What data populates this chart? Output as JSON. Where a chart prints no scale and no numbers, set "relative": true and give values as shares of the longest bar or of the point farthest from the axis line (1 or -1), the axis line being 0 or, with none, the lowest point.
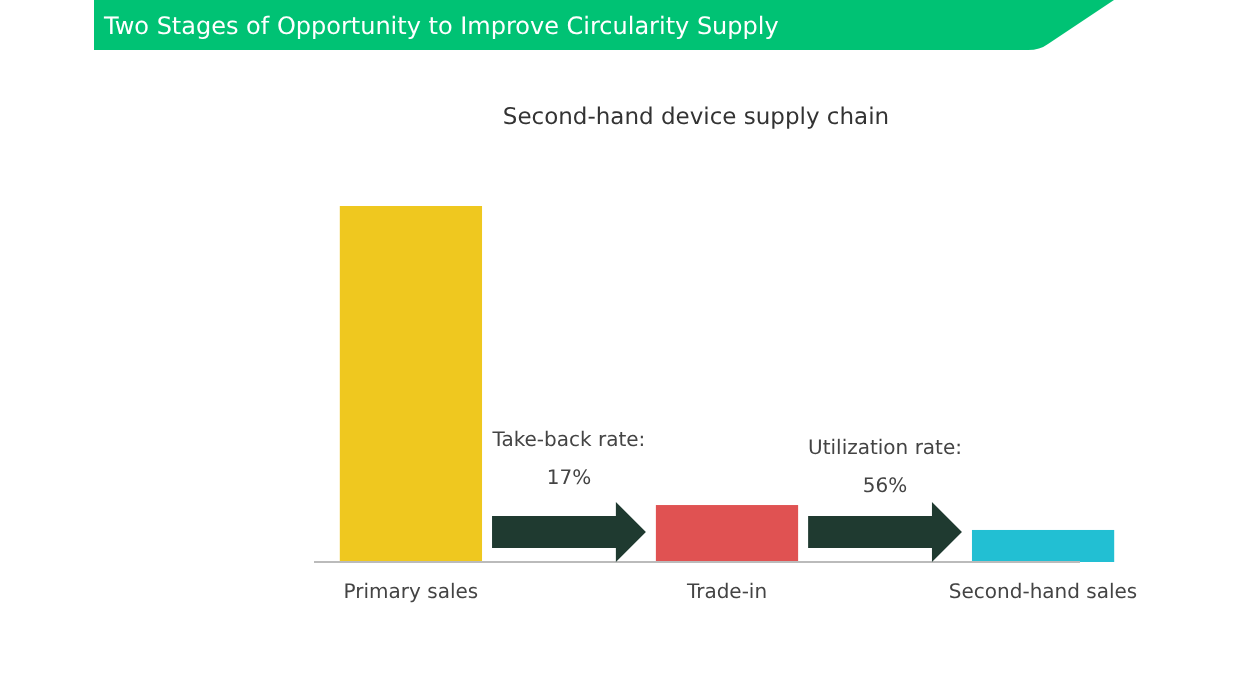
{
  "chart_data": {
    "type": "bar",
    "title": "Two Stages of Opportunity to Improve Circularity Supply",
    "subtitle": "Second-hand device supply chain",
    "categories": [
      "Primary sales",
      "Trade-in",
      "Second-hand sales"
    ],
    "values": [
      1,
      0.16,
      0.09
    ],
    "colors": [
      "#efc81f",
      "#e05252",
      "#22bfd3"
    ],
    "relative": true,
    "annotations": [
      "Take-back rate:\n17%",
      "Utilization rate:\n56%"
    ]
  }
}
